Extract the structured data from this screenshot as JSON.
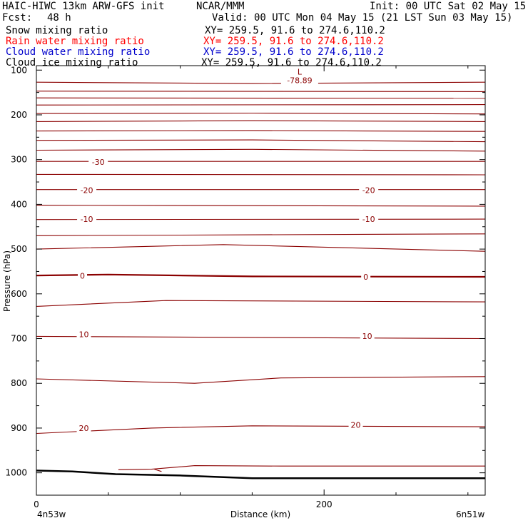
{
  "header": {
    "model": "HAIC-HIWC 13km ARW-GFS init",
    "org": "NCAR/MMM",
    "init": "Init: 00 UTC Sat 02 May 15",
    "fcst_label": "Fcst:",
    "fcst_value": "48 h",
    "valid": "Valid: 00 UTC Mon 04 May 15 (21 LST Sun 03 May 15)"
  },
  "fields": [
    {
      "name": "Snow mixing ratio",
      "xy": "XY= 259.5, 91.6 to 274.6,110.2",
      "color": "#000000"
    },
    {
      "name": "Rain water mixing ratio",
      "xy": "XY= 259.5, 91.6 to 274.6,110.2",
      "color": "#ff0000"
    },
    {
      "name": "Cloud water mixing ratio",
      "xy": "XY= 259.5, 91.6 to 274.6,110.2",
      "color": "#0000cc"
    },
    {
      "name": "Cloud ice mixing ratio",
      "xy": "XY= 259.5, 91.6 to 274.6,110.2",
      "color": "#000000"
    }
  ],
  "chart_data": {
    "type": "line",
    "subtype": "vertical cross-section contour",
    "xlabel": "Distance (km)",
    "ylabel": "Pressure (hPa)",
    "xlim": [
      0,
      312
    ],
    "ylim": [
      1050,
      90
    ],
    "y_scale": "linear, inverted",
    "x_ticks": [
      0,
      200
    ],
    "x_minor_ticks": [
      50,
      100,
      150,
      250,
      300
    ],
    "x_tick_labels": [
      "0",
      "200"
    ],
    "y_ticks": [
      100,
      200,
      300,
      400,
      500,
      600,
      700,
      800,
      900,
      1000
    ],
    "y_tick_labels": [
      "100",
      "200",
      "300",
      "400",
      "500",
      "600",
      "700",
      "800",
      "900",
      "1000"
    ],
    "endpoint_left": "4n53w",
    "endpoint_right": "6n51w",
    "contour_color": "#8b0000",
    "low_marker": {
      "label": "L",
      "value": "-78.89",
      "x": 183,
      "p": 110
    },
    "contour_labels": [
      {
        "text": "-30",
        "x": 43,
        "p": 305
      },
      {
        "text": "-20",
        "x": 35,
        "p": 368
      },
      {
        "text": "-20",
        "x": 231,
        "p": 368
      },
      {
        "text": "-10",
        "x": 35,
        "p": 433
      },
      {
        "text": "-10",
        "x": 231,
        "p": 433
      },
      {
        "text": "0",
        "x": 32,
        "p": 560
      },
      {
        "text": "0",
        "x": 229,
        "p": 562
      },
      {
        "text": "10",
        "x": 33,
        "p": 690
      },
      {
        "text": "10",
        "x": 230,
        "p": 694
      },
      {
        "text": "20",
        "x": 33,
        "p": 900
      },
      {
        "text": "20",
        "x": 222,
        "p": 893
      }
    ],
    "contours": [
      {
        "points": [
          [
            0,
            127
          ],
          [
            150,
            130
          ],
          [
            312,
            127
          ]
        ]
      },
      {
        "points": [
          [
            0,
            147
          ],
          [
            312,
            148
          ]
        ]
      },
      {
        "points": [
          [
            0,
            162
          ],
          [
            312,
            163
          ]
        ]
      },
      {
        "points": [
          [
            0,
            178
          ],
          [
            312,
            177
          ]
        ]
      },
      {
        "points": [
          [
            0,
            197
          ],
          [
            150,
            196
          ],
          [
            312,
            198
          ]
        ]
      },
      {
        "points": [
          [
            0,
            215
          ],
          [
            150,
            213
          ],
          [
            312,
            215
          ]
        ]
      },
      {
        "points": [
          [
            0,
            236
          ],
          [
            150,
            235
          ],
          [
            312,
            237
          ]
        ]
      },
      {
        "points": [
          [
            0,
            257
          ],
          [
            150,
            256
          ],
          [
            312,
            260
          ]
        ]
      },
      {
        "points": [
          [
            0,
            279
          ],
          [
            150,
            277
          ],
          [
            312,
            281
          ]
        ]
      },
      {
        "points": [
          [
            0,
            304
          ],
          [
            312,
            304
          ]
        ]
      },
      {
        "points": [
          [
            0,
            333
          ],
          [
            312,
            334
          ]
        ]
      },
      {
        "points": [
          [
            0,
            367
          ],
          [
            312,
            367
          ]
        ]
      },
      {
        "points": [
          [
            0,
            402
          ],
          [
            312,
            404
          ]
        ]
      },
      {
        "points": [
          [
            0,
            434
          ],
          [
            312,
            433
          ]
        ]
      },
      {
        "points": [
          [
            0,
            470
          ],
          [
            312,
            466
          ]
        ]
      },
      {
        "points": [
          [
            0,
            500
          ],
          [
            130,
            490
          ],
          [
            312,
            505
          ]
        ]
      },
      {
        "points": [
          [
            0,
            559
          ],
          [
            50,
            557
          ],
          [
            150,
            561
          ],
          [
            312,
            562
          ]
        ],
        "bold": true
      },
      {
        "points": [
          [
            0,
            628
          ],
          [
            90,
            615
          ],
          [
            312,
            618
          ]
        ]
      },
      {
        "points": [
          [
            0,
            695
          ],
          [
            312,
            700
          ]
        ]
      },
      {
        "points": [
          [
            0,
            790
          ],
          [
            110,
            800
          ],
          [
            170,
            788
          ],
          [
            312,
            785
          ]
        ]
      },
      {
        "points": [
          [
            0,
            912
          ],
          [
            80,
            900
          ],
          [
            150,
            895
          ],
          [
            312,
            897
          ]
        ]
      },
      {
        "points": [
          [
            57,
            993
          ],
          [
            80,
            992
          ],
          [
            110,
            984
          ],
          [
            170,
            985
          ],
          [
            312,
            985
          ]
        ]
      },
      {
        "points": [
          [
            82,
            992
          ],
          [
            87,
            997
          ]
        ]
      }
    ],
    "terrain": {
      "points": [
        [
          0,
          995
        ],
        [
          25,
          997
        ],
        [
          55,
          1003
        ],
        [
          100,
          1006
        ],
        [
          150,
          1012
        ],
        [
          312,
          1012
        ]
      ]
    }
  }
}
